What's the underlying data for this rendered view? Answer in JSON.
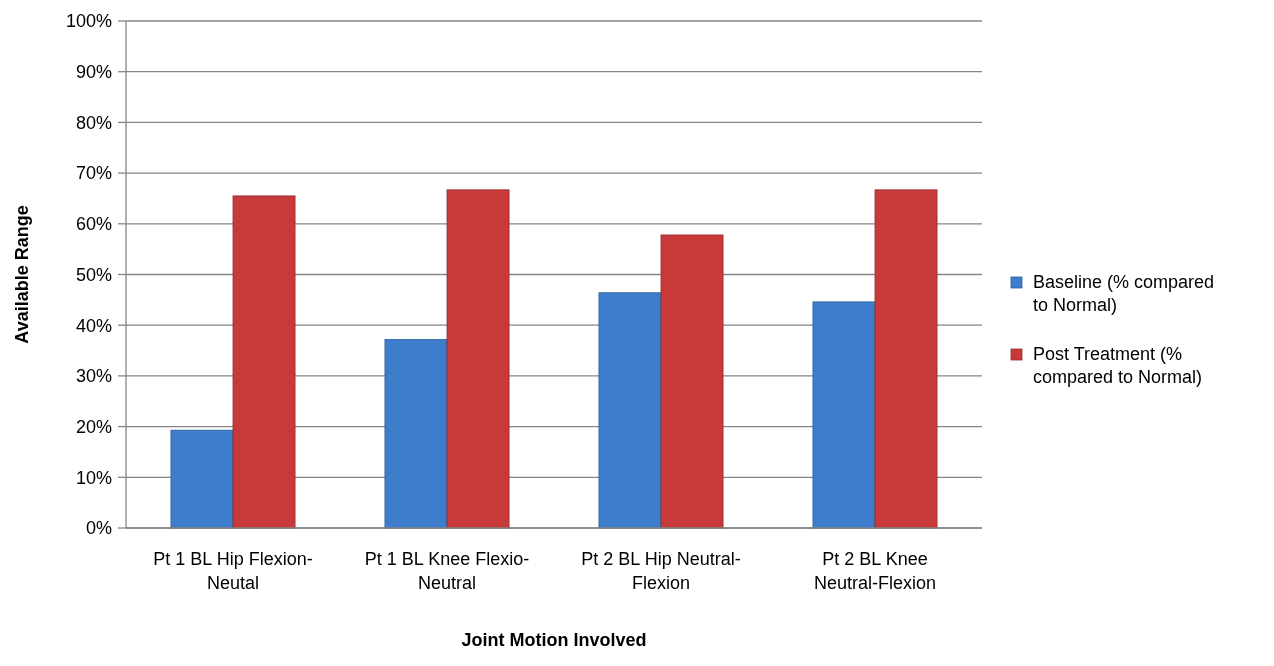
{
  "chart_data": {
    "type": "bar",
    "xlabel": "Joint Motion Involved",
    "ylabel": "Available Range",
    "categories": [
      "Pt 1 BL Hip Flexion-Neutal",
      "Pt 1 BL Knee Flexio-Neutral",
      "Pt 2 BL Hip Neutral-Flexion",
      "Pt 2 BL Knee Neutral-Flexion"
    ],
    "series": [
      {
        "name": "Baseline (% compared to Normal)",
        "color": "#3d7dcc",
        "values": [
          19.3,
          37.2,
          46.4,
          44.6
        ]
      },
      {
        "name": "Post Treatment (% compared to Normal)",
        "color": "#c83a3a",
        "values": [
          65.5,
          66.7,
          57.8,
          66.7
        ]
      }
    ],
    "ylim": [
      0,
      100
    ],
    "yticks": [
      {
        "value": 0,
        "label": "0%"
      },
      {
        "value": 10,
        "label": "10%"
      },
      {
        "value": 20,
        "label": "20%"
      },
      {
        "value": 30,
        "label": "30%"
      },
      {
        "value": 40,
        "label": "40%"
      },
      {
        "value": 50,
        "label": "50%"
      },
      {
        "value": 60,
        "label": "60%"
      },
      {
        "value": 70,
        "label": "70%"
      },
      {
        "value": 80,
        "label": "80%"
      },
      {
        "value": 90,
        "label": "90%"
      },
      {
        "value": 100,
        "label": "100%"
      }
    ],
    "grid": "y",
    "legend": "right"
  }
}
